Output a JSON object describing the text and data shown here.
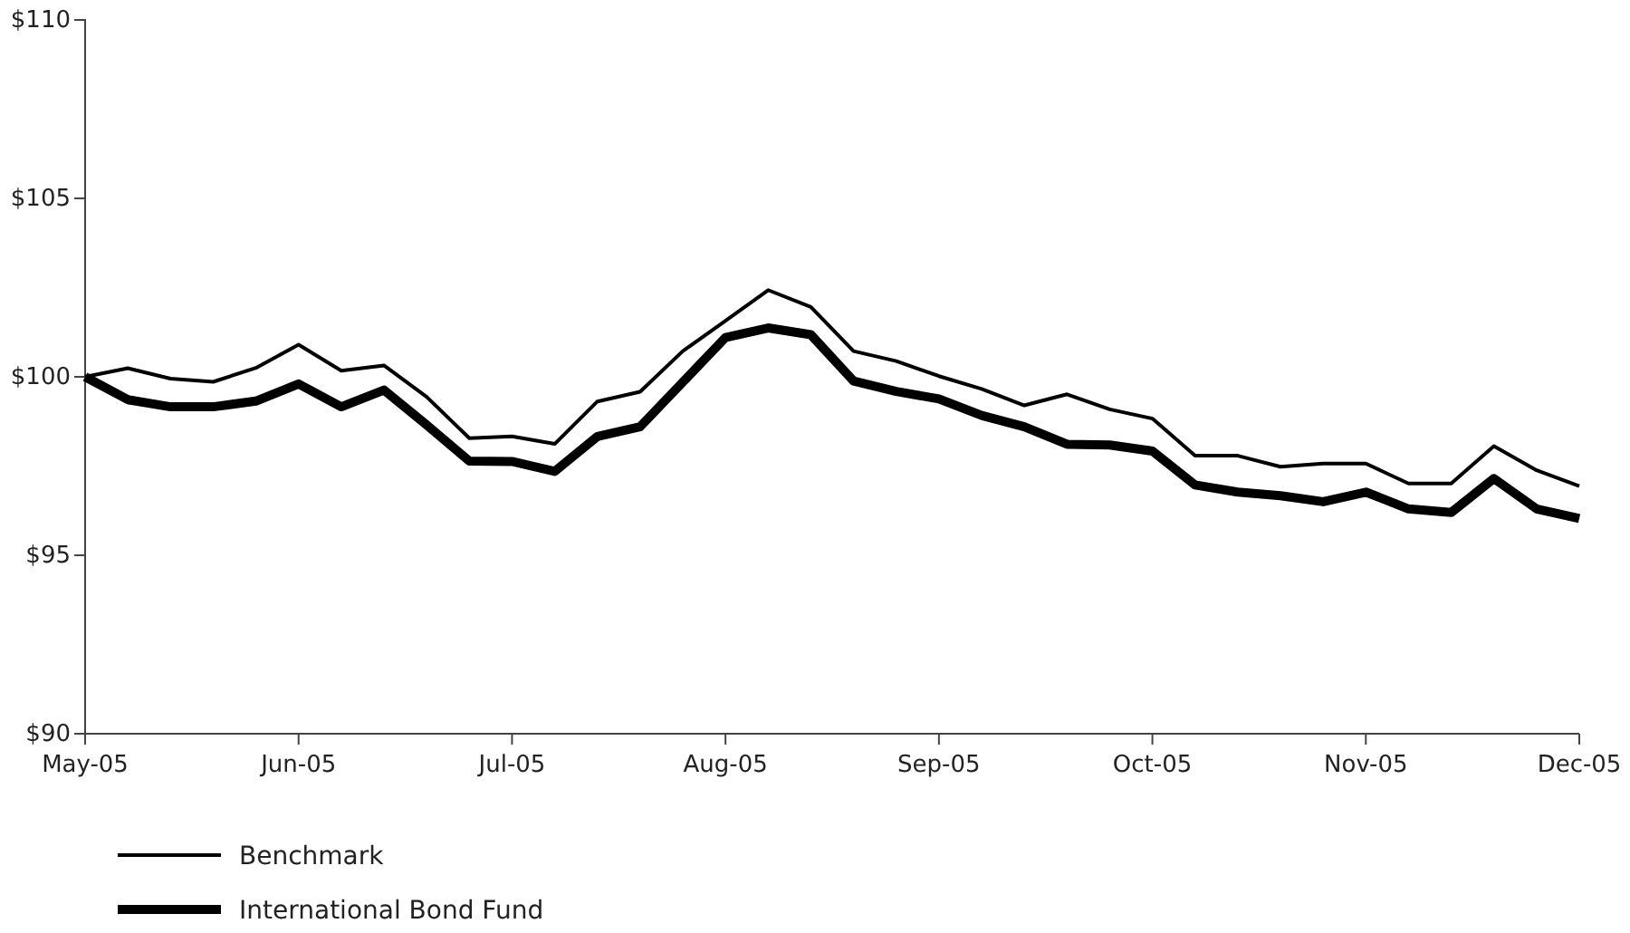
{
  "chart_data": {
    "type": "line",
    "categories": [
      "May-05",
      null,
      null,
      null,
      null,
      "Jun-05",
      null,
      null,
      null,
      null,
      "Jul-05",
      null,
      null,
      null,
      null,
      "Aug-05",
      null,
      null,
      null,
      null,
      "Sep-05",
      null,
      null,
      null,
      null,
      "Oct-05",
      null,
      null,
      null,
      null,
      "Nov-05",
      null,
      null,
      null,
      null,
      "Dec-05"
    ],
    "series": [
      {
        "name": "Benchmark",
        "color": "#000000",
        "values": [
          100.0,
          100.24,
          99.95,
          99.86,
          100.25,
          100.9,
          100.17,
          100.32,
          99.44,
          98.28,
          98.33,
          98.12,
          99.31,
          99.58,
          100.72,
          101.57,
          102.43,
          101.96,
          100.72,
          100.44,
          100.02,
          99.66,
          99.2,
          99.51,
          99.09,
          98.83,
          97.79,
          97.79,
          97.48,
          97.57,
          97.57,
          97.01,
          97.01,
          98.06,
          97.38,
          96.94
        ]
      },
      {
        "name": "International Bond Fund",
        "color": "#000000",
        "values": [
          100.0,
          99.36,
          99.16,
          99.16,
          99.32,
          99.8,
          99.16,
          99.63,
          98.65,
          97.64,
          97.63,
          97.35,
          98.33,
          98.6,
          99.85,
          101.1,
          101.37,
          101.18,
          99.88,
          99.59,
          99.38,
          98.92,
          98.6,
          98.11,
          98.09,
          97.92,
          96.97,
          96.77,
          96.67,
          96.5,
          96.77,
          96.3,
          96.2,
          97.15,
          96.3,
          96.03
        ]
      }
    ],
    "ylim": [
      90,
      110
    ],
    "yticks": [
      {
        "value": 90,
        "label": "$90"
      },
      {
        "value": 95,
        "label": "$95"
      },
      {
        "value": 100,
        "label": "$100"
      },
      {
        "value": 105,
        "label": "$105"
      },
      {
        "value": 110,
        "label": "$110"
      }
    ],
    "grid": false,
    "legend": "bottom left",
    "marker": "none",
    "line_style": "solid"
  }
}
